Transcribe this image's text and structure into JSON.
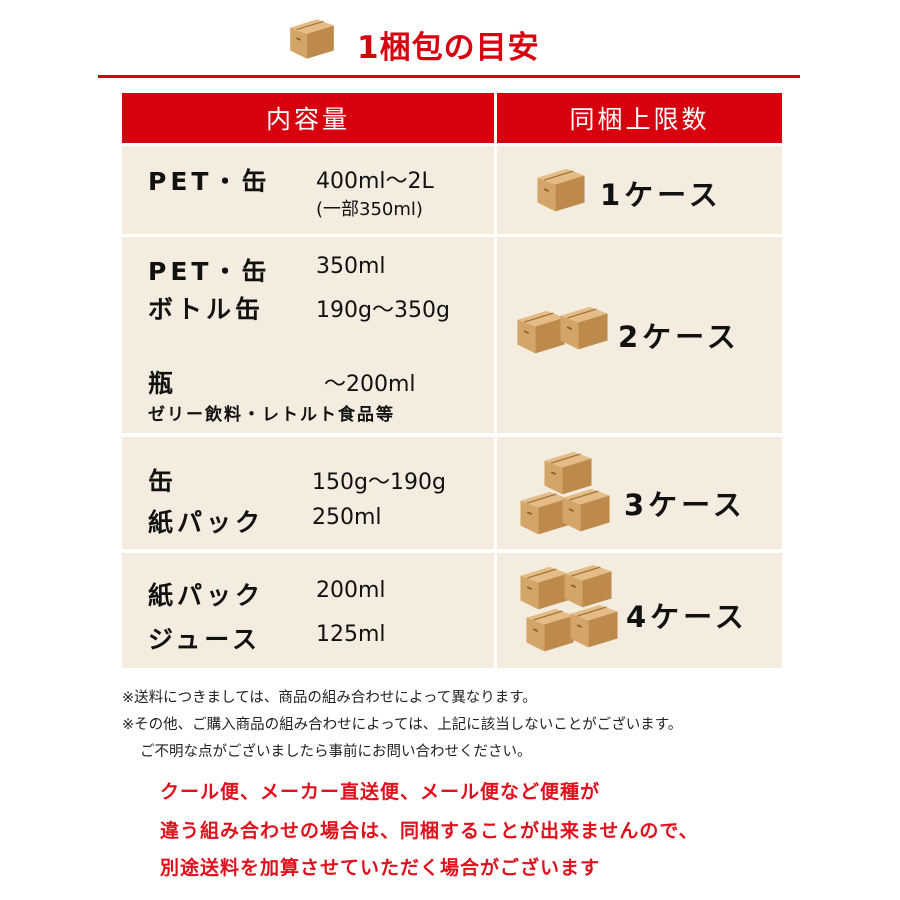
{
  "title": "1梱包の目安",
  "table": {
    "headers": [
      "内容量",
      "同梱上限数"
    ],
    "rows": [
      {
        "items": [
          {
            "label": "PET・缶",
            "value": "400ml〜2L"
          },
          {
            "label": "",
            "value": "(一部350ml)"
          }
        ],
        "cases": "1ケース"
      },
      {
        "items": [
          {
            "label": "PET・缶",
            "value": "350ml"
          },
          {
            "label": "ボトル缶",
            "value": "190g〜350g"
          },
          {
            "label": "瓶",
            "value": "〜200ml"
          }
        ],
        "note": "ゼリー飲料・レトルト食品等",
        "cases": "2ケース"
      },
      {
        "items": [
          {
            "label": "缶",
            "value": "150g〜190g"
          },
          {
            "label": "紙パック",
            "value": "250ml"
          }
        ],
        "cases": "3ケース"
      },
      {
        "items": [
          {
            "label": "紙パック",
            "value": "200ml"
          },
          {
            "label": "ジュース",
            "value": "125ml"
          }
        ],
        "cases": "4ケース"
      }
    ]
  },
  "notes": [
    "※送料につきましては、商品の組み合わせによって異なります。",
    "※その他、ご購入商品の組み合わせによっては、上記に該当しないことがございます。",
    "ご不明な点がございましたら事前にお問い合わせください。"
  ],
  "warning": [
    "クール便、メーカー直送便、メール便など便種が",
    "違う組み合わせの場合は、同梱することが出来ませんので、",
    "別途送料を加算させていただく場合がございます"
  ],
  "colors": {
    "accent": "#d7000f",
    "cell_bg": "#f3ecdf",
    "box": "#c99a5c"
  }
}
